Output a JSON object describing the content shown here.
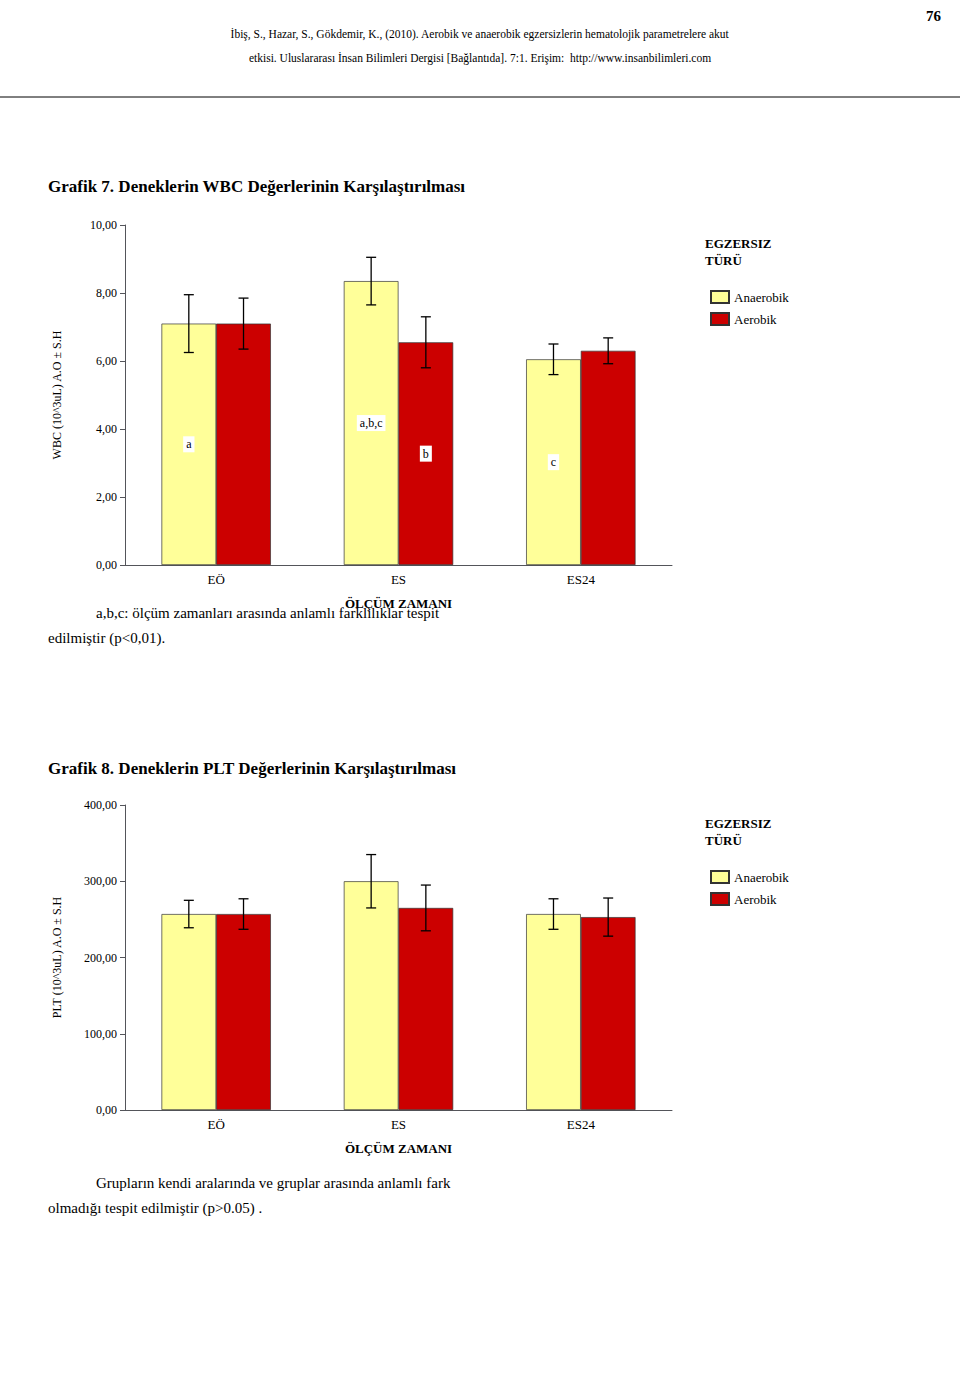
{
  "chart_data": [
    {
      "type": "bar",
      "title": "Grafik 7. Deneklerin WBC Değerlerinin Karşılaştırılması",
      "annotations": [
        "76",
        "İbiş, S., Hazar, S., Gökdemir, K., (2010). Aerobik ve anaerobik egzersizlerin hematolojik parametrelere akut",
        "etkisi. Uluslararası İnsan Bilimleri Dergisi [Bağlantıda]. 7:1. Erişim:  http://www.insanbilimleri.com",
        "a,b,c: ölçüm zamanları arasında anlamlı farklılıklar tespit",
        "edilmiştir (p<0,01)."
      ],
      "xlabel": "ÖLÇÜM ZAMANI",
      "ylabel": "WBC (10^3uL) A.O ± S.H",
      "categories": [
        "EÖ",
        "ES",
        "ES24"
      ],
      "series": [
        {
          "name": "Anaerobik",
          "color": "#FFFF99",
          "values": [
            7.1,
            8.35,
            6.05
          ],
          "errors": [
            0.85,
            0.7,
            0.45
          ],
          "annotations": [
            "a",
            "a,b,c",
            "c"
          ]
        },
        {
          "name": "Aerobik",
          "color": "#CC0000",
          "values": [
            7.1,
            6.55,
            6.3
          ],
          "errors": [
            0.75,
            0.75,
            0.38
          ],
          "annotations": [
            null,
            "b",
            null
          ]
        }
      ],
      "ylim": [
        0,
        10
      ],
      "yticks": [
        {
          "value": 0,
          "label": "0,00"
        },
        {
          "value": 2,
          "label": "2,00"
        },
        {
          "value": 4,
          "label": "4,00"
        },
        {
          "value": 6,
          "label": "6,00"
        },
        {
          "value": 8,
          "label": "8,00"
        },
        {
          "value": 10,
          "label": "10,00"
        }
      ],
      "grid": false,
      "legend": "right",
      "legend_title": "EGZERSIZ\nTÜRÜ"
    },
    {
      "type": "bar",
      "title": "Grafik 8. Deneklerin PLT Değerlerinin Karşılaştırılması",
      "annotations": [
        "Grupların kendi aralarında ve gruplar arasında anlamlı fark",
        "olmadığı tespit edilmiştir (p>0.05) ."
      ],
      "xlabel": "ÖLÇÜM ZAMANI",
      "ylabel": "PLT (10^3uL) A.O ± S.H",
      "categories": [
        "EÖ",
        "ES",
        "ES24"
      ],
      "series": [
        {
          "name": "Anaerobik",
          "color": "#FFFF99",
          "values": [
            257,
            300,
            257
          ],
          "errors": [
            18,
            35,
            20
          ]
        },
        {
          "name": "Aerobik",
          "color": "#CC0000",
          "values": [
            257,
            265,
            253
          ],
          "errors": [
            20,
            30,
            25
          ]
        }
      ],
      "ylim": [
        0,
        400
      ],
      "yticks": [
        {
          "value": 0,
          "label": "0,00"
        },
        {
          "value": 100,
          "label": "100,00"
        },
        {
          "value": 200,
          "label": "200,00"
        },
        {
          "value": 300,
          "label": "300,00"
        },
        {
          "value": 400,
          "label": "400,00"
        }
      ],
      "grid": false,
      "legend": "right",
      "legend_title": "EGZERSIZ\nTÜRÜ"
    }
  ]
}
